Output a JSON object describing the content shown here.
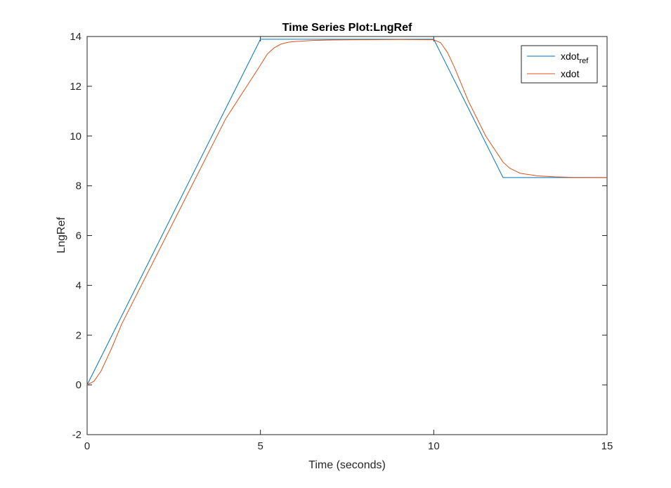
{
  "chart_data": {
    "type": "line",
    "title": "Time Series Plot:LngRef",
    "xlabel": "Time (seconds)",
    "ylabel": "LngRef",
    "xlim": [
      0,
      15
    ],
    "ylim": [
      -2,
      14
    ],
    "xticks": [
      0,
      5,
      10,
      15
    ],
    "yticks": [
      -2,
      0,
      2,
      4,
      6,
      8,
      10,
      12,
      14
    ],
    "grid": false,
    "legend_position": "top-right",
    "series": [
      {
        "name": "xdot",
        "name_subscript": "ref",
        "color": "#0072BD",
        "x": [
          0,
          5.0,
          10.0,
          12.0,
          15.0
        ],
        "y": [
          0,
          13.89,
          13.89,
          8.33,
          8.33
        ]
      },
      {
        "name": "xdot",
        "name_subscript": "",
        "color": "#D95319",
        "x": [
          0,
          0.2,
          0.4,
          0.7,
          1.0,
          2.0,
          3.0,
          4.0,
          5.0,
          5.2,
          5.4,
          5.6,
          5.8,
          6.0,
          6.5,
          7.0,
          8.0,
          9.0,
          10.0,
          10.2,
          10.4,
          10.6,
          11.0,
          11.5,
          12.0,
          12.2,
          12.5,
          13.0,
          13.5,
          14.0,
          15.0
        ],
        "y": [
          0,
          0.15,
          0.55,
          1.45,
          2.45,
          5.2,
          7.95,
          10.7,
          12.85,
          13.3,
          13.55,
          13.7,
          13.77,
          13.8,
          13.84,
          13.86,
          13.87,
          13.88,
          13.87,
          13.75,
          13.35,
          12.75,
          11.4,
          10.0,
          8.95,
          8.7,
          8.5,
          8.4,
          8.36,
          8.34,
          8.33
        ]
      }
    ]
  }
}
